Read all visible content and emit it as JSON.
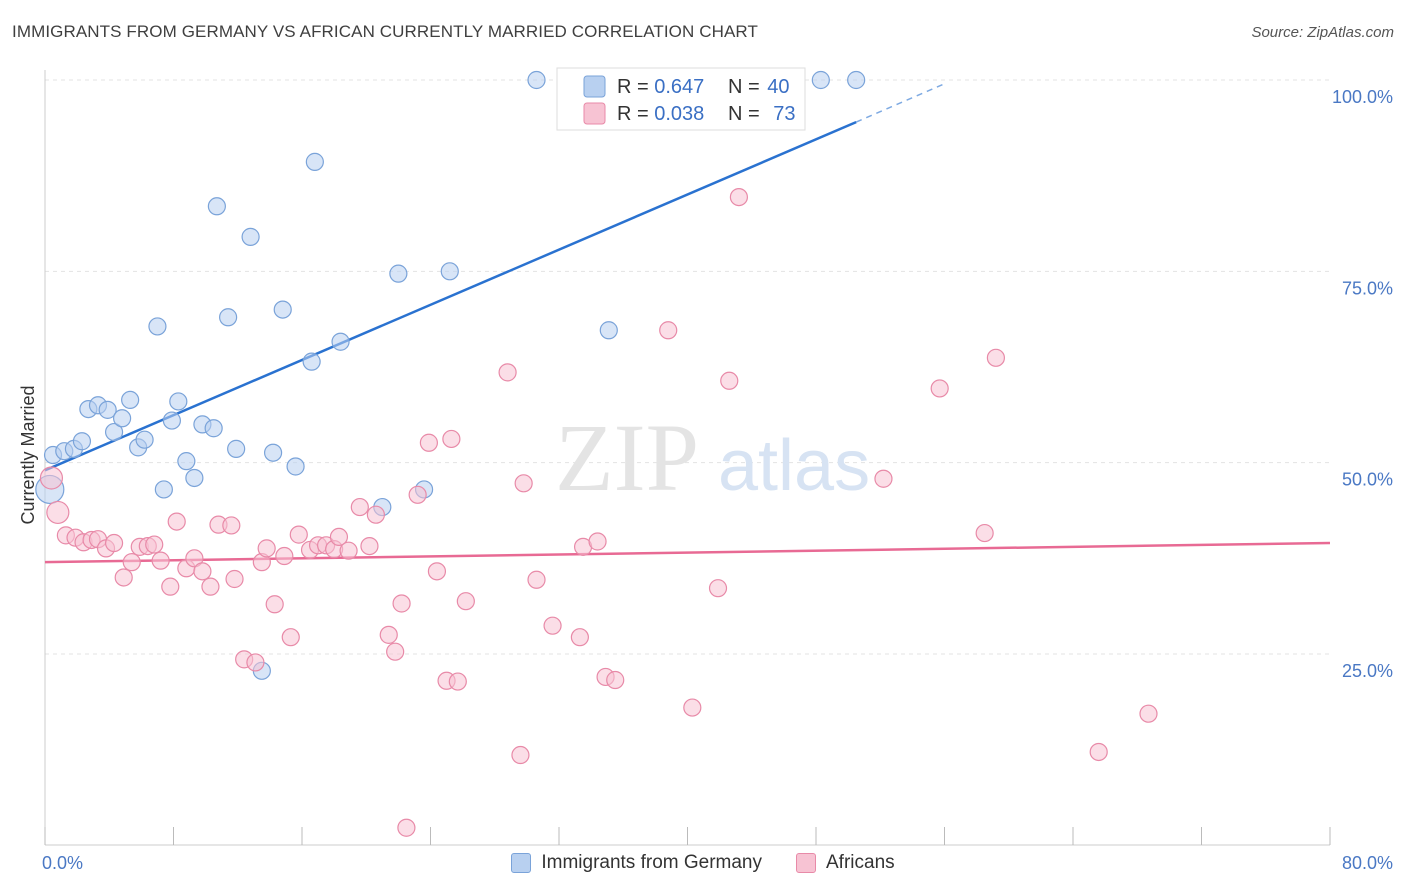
{
  "title": "IMMIGRANTS FROM GERMANY VS AFRICAN CURRENTLY MARRIED CORRELATION CHART",
  "source": "Source: ZipAtlas.com",
  "watermark": {
    "zip": "ZIP",
    "atlas": "atlas"
  },
  "colors": {
    "blue_fill": "#b8d0f0",
    "blue_stroke": "#7aa3d9",
    "blue_line": "#2a72d0",
    "pink_fill": "#f7c3d3",
    "pink_stroke": "#e88aa8",
    "pink_line": "#e86a94",
    "accent_text": "#3a6fc4",
    "grid": "#e3e3e3"
  },
  "legend": {
    "series": [
      {
        "r_label": "R = ",
        "r_value": "0.647",
        "n_label": "N = ",
        "n_value": "40"
      },
      {
        "r_label": "R = ",
        "r_value": "0.038",
        "n_label": "N = ",
        "n_value": "73"
      }
    ]
  },
  "chart_data": {
    "type": "scatter",
    "title": "IMMIGRANTS FROM GERMANY VS AFRICAN CURRENTLY MARRIED CORRELATION CHART",
    "xlabel": "",
    "ylabel": "Currently Married",
    "xlim": [
      0,
      80
    ],
    "ylim": [
      0,
      102
    ],
    "x_tick_labels": [
      "0.0%",
      "80.0%"
    ],
    "y_ticks": [
      25,
      50,
      75,
      100
    ],
    "y_tick_labels": [
      "25.0%",
      "50.0%",
      "75.0%",
      "100.0%"
    ],
    "grid": true,
    "legend_position": "top-center",
    "series": [
      {
        "name": "Immigrants from Germany",
        "r": 0.647,
        "n": 40,
        "trend": {
          "x0": 0,
          "y0": 49,
          "x1": 50.5,
          "y1": 94.5,
          "dashed_to_x": 56,
          "dashed_to_y": 99.5
        },
        "points": [
          [
            0.3,
            46.5
          ],
          [
            0.5,
            51
          ],
          [
            1.2,
            51.5
          ],
          [
            1.8,
            51.8
          ],
          [
            2.3,
            52.8
          ],
          [
            2.7,
            57
          ],
          [
            3.3,
            57.5
          ],
          [
            3.9,
            56.9
          ],
          [
            4.3,
            54
          ],
          [
            4.8,
            55.8
          ],
          [
            5.3,
            58.2
          ],
          [
            5.8,
            52
          ],
          [
            6.2,
            53
          ],
          [
            7.0,
            67.8
          ],
          [
            7.4,
            46.5
          ],
          [
            7.9,
            55.5
          ],
          [
            8.3,
            58
          ],
          [
            8.8,
            50.2
          ],
          [
            9.3,
            48
          ],
          [
            9.8,
            55
          ],
          [
            10.5,
            54.5
          ],
          [
            10.7,
            83.5
          ],
          [
            11.4,
            69
          ],
          [
            11.9,
            51.8
          ],
          [
            12.8,
            79.5
          ],
          [
            13.5,
            22.8
          ],
          [
            14.2,
            51.3
          ],
          [
            14.8,
            70
          ],
          [
            15.6,
            49.5
          ],
          [
            16.6,
            63.2
          ],
          [
            16.8,
            89.3
          ],
          [
            18.4,
            65.8
          ],
          [
            21.0,
            44.2
          ],
          [
            22.0,
            74.7
          ],
          [
            23.6,
            46.5
          ],
          [
            25.2,
            75
          ],
          [
            30.6,
            100
          ],
          [
            35.1,
            67.3
          ],
          [
            48.3,
            100
          ],
          [
            50.5,
            100
          ]
        ]
      },
      {
        "name": "Africans",
        "r": 0.038,
        "n": 73,
        "trend": {
          "x0": 0,
          "y0": 37,
          "x1": 80,
          "y1": 39.5
        },
        "points": [
          [
            0.4,
            48
          ],
          [
            0.8,
            43.5
          ],
          [
            1.3,
            40.5
          ],
          [
            1.9,
            40.2
          ],
          [
            2.4,
            39.6
          ],
          [
            2.9,
            39.9
          ],
          [
            3.3,
            40
          ],
          [
            3.8,
            38.8
          ],
          [
            4.3,
            39.5
          ],
          [
            4.9,
            35
          ],
          [
            5.4,
            37
          ],
          [
            5.9,
            39
          ],
          [
            6.4,
            39.1
          ],
          [
            6.8,
            39.3
          ],
          [
            7.2,
            37.2
          ],
          [
            7.8,
            33.8
          ],
          [
            8.2,
            42.3
          ],
          [
            8.8,
            36.2
          ],
          [
            9.3,
            37.5
          ],
          [
            9.8,
            35.8
          ],
          [
            10.3,
            33.8
          ],
          [
            10.8,
            41.9
          ],
          [
            11.6,
            41.8
          ],
          [
            11.8,
            34.8
          ],
          [
            12.4,
            24.3
          ],
          [
            13.1,
            23.9
          ],
          [
            13.5,
            37
          ],
          [
            13.8,
            38.8
          ],
          [
            14.3,
            31.5
          ],
          [
            14.9,
            37.8
          ],
          [
            15.3,
            27.2
          ],
          [
            15.8,
            40.6
          ],
          [
            16.5,
            38.6
          ],
          [
            17.0,
            39.2
          ],
          [
            17.5,
            39.2
          ],
          [
            18.0,
            38.7
          ],
          [
            18.3,
            40.3
          ],
          [
            18.9,
            38.5
          ],
          [
            19.6,
            44.2
          ],
          [
            20.2,
            39.1
          ],
          [
            20.6,
            43.2
          ],
          [
            21.4,
            27.5
          ],
          [
            21.8,
            25.3
          ],
          [
            22.2,
            31.6
          ],
          [
            22.5,
            2.3
          ],
          [
            23.2,
            45.8
          ],
          [
            23.9,
            52.6
          ],
          [
            24.4,
            35.8
          ],
          [
            25.0,
            21.5
          ],
          [
            25.3,
            53.1
          ],
          [
            25.7,
            21.4
          ],
          [
            26.2,
            31.9
          ],
          [
            28.8,
            61.8
          ],
          [
            29.6,
            11.8
          ],
          [
            29.8,
            47.3
          ],
          [
            30.6,
            34.7
          ],
          [
            31.6,
            28.7
          ],
          [
            33.3,
            27.2
          ],
          [
            33.5,
            39
          ],
          [
            34.4,
            39.7
          ],
          [
            34.9,
            22
          ],
          [
            35.5,
            21.6
          ],
          [
            38.8,
            67.3
          ],
          [
            40.3,
            18
          ],
          [
            41.9,
            33.6
          ],
          [
            42.6,
            60.7
          ],
          [
            43.2,
            84.7
          ],
          [
            52.2,
            47.9
          ],
          [
            55.7,
            59.7
          ],
          [
            58.5,
            40.8
          ],
          [
            59.2,
            63.7
          ],
          [
            65.6,
            12.2
          ],
          [
            68.7,
            17.2
          ]
        ]
      }
    ]
  },
  "bottom_legend": [
    "Immigrants from Germany",
    "Africans"
  ]
}
